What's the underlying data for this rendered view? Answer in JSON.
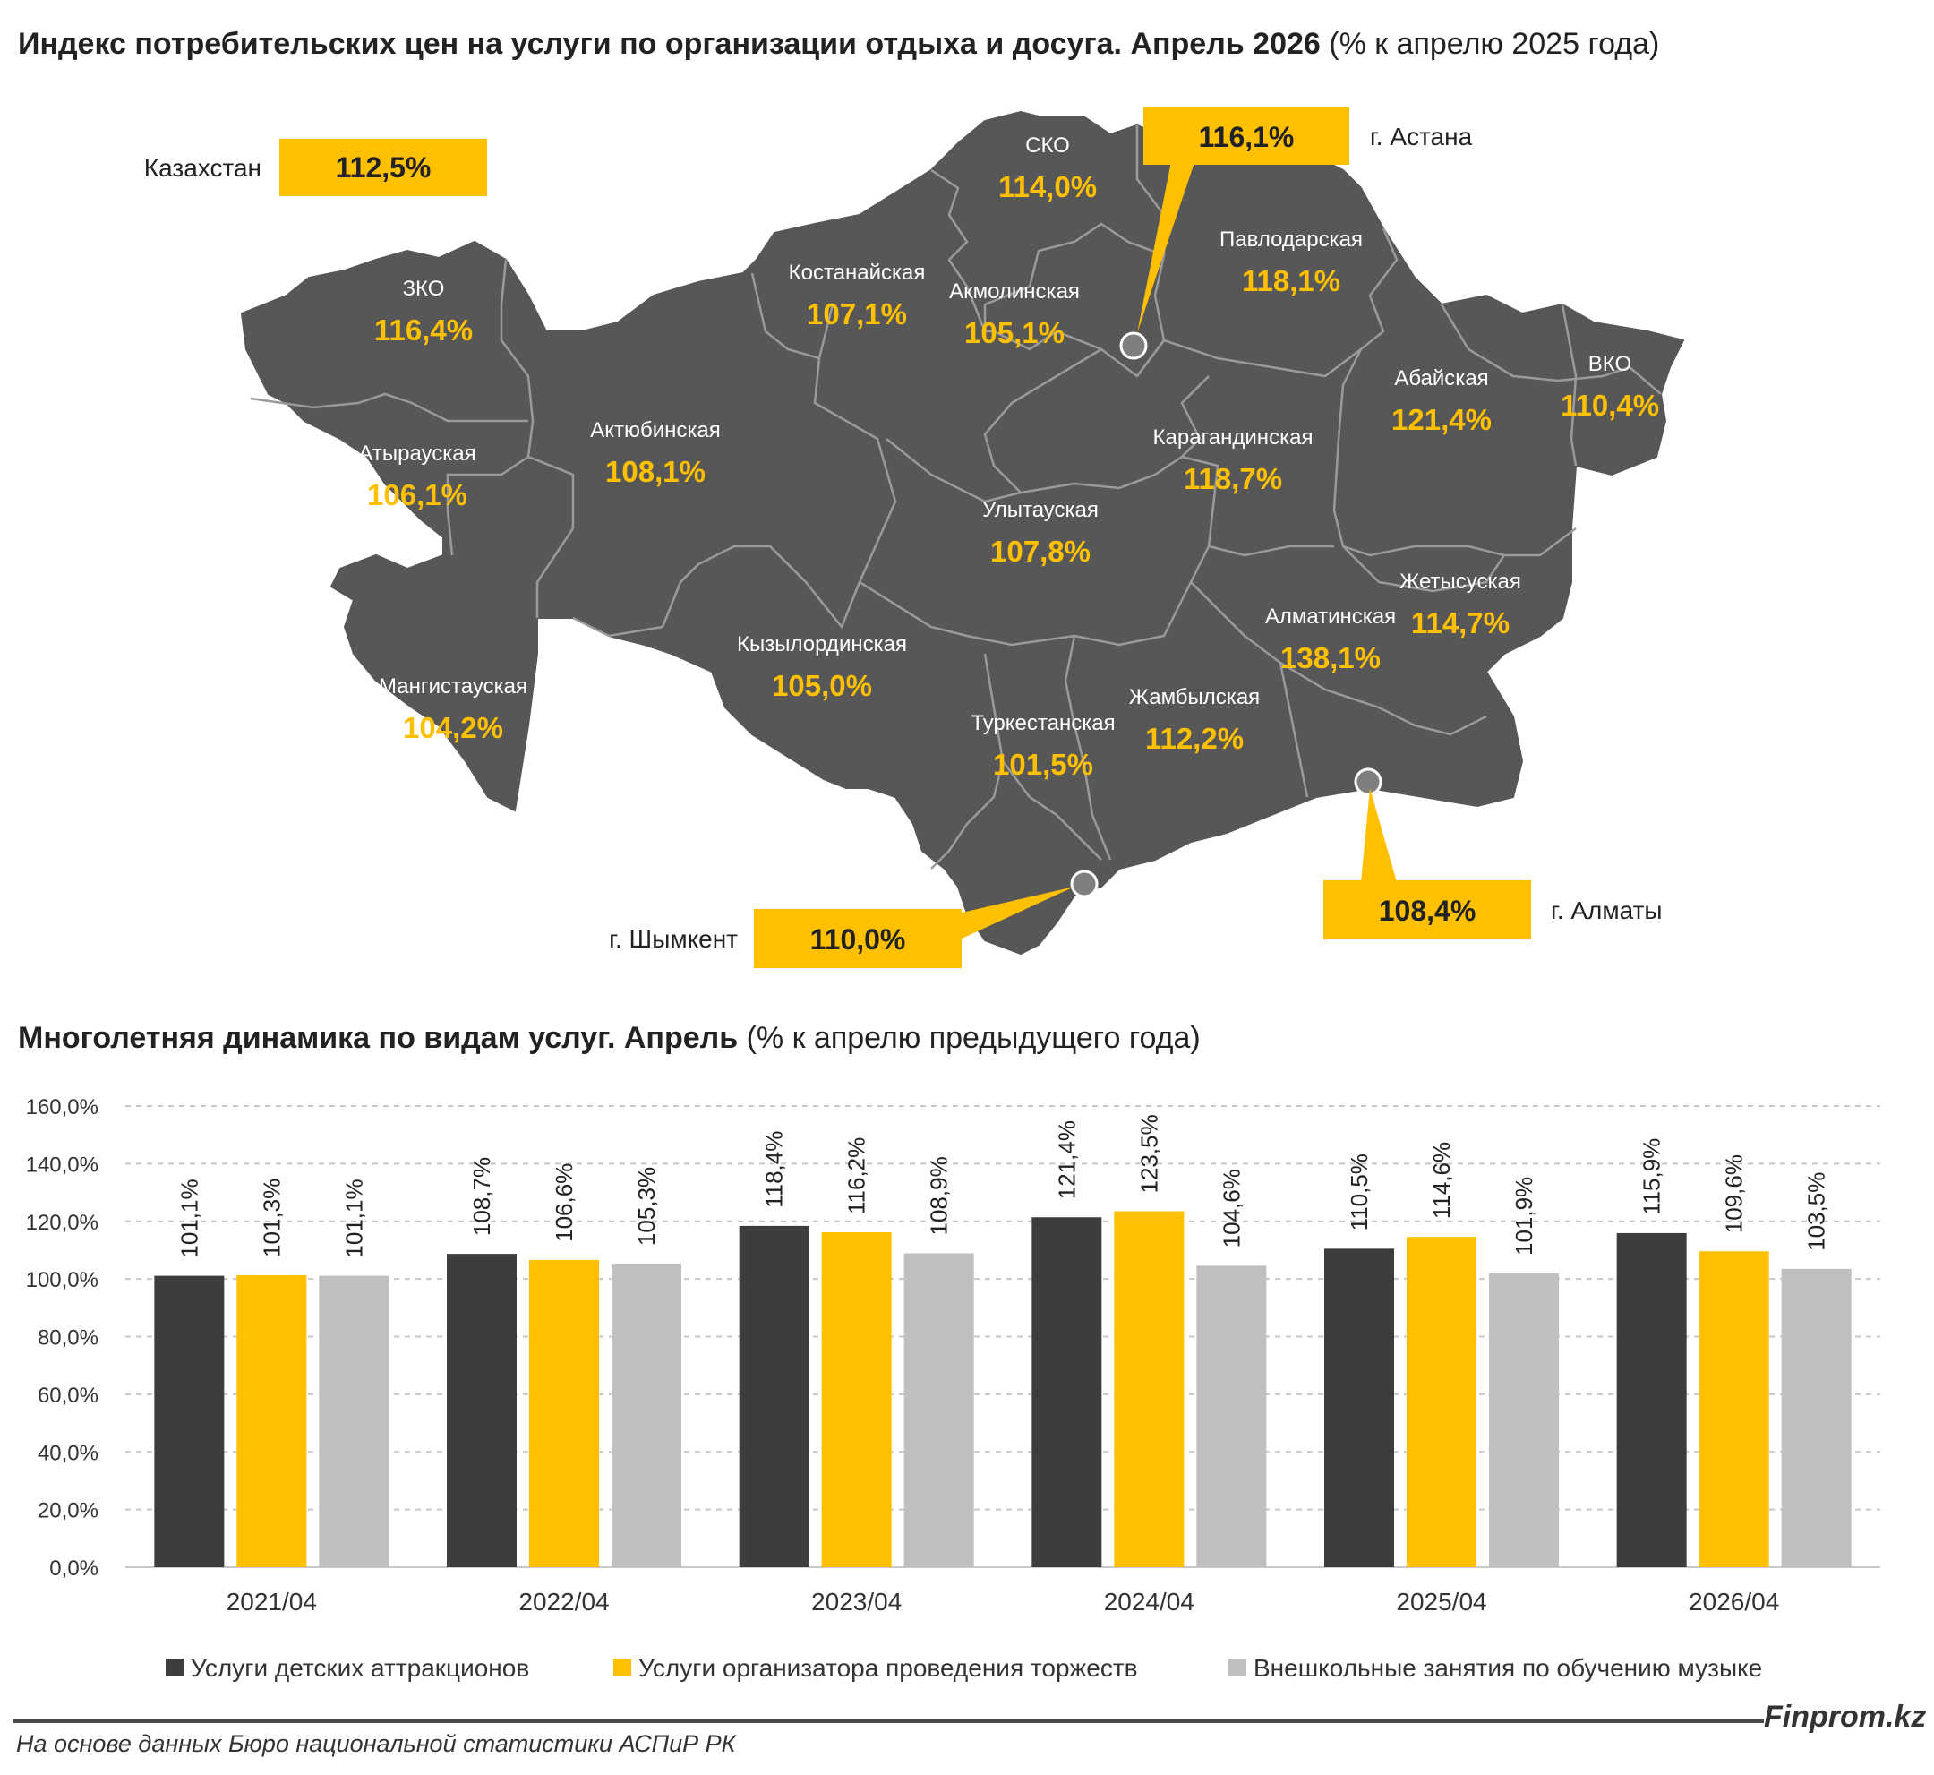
{
  "map": {
    "title_bold": "Индекс потребительских цен на услуги по организации отдыха и досуга. Апрель 2026",
    "title_rest": "(% к апрелю 2025 года)",
    "kazakhstan": {
      "label": "Казахстан",
      "value": "112,5%"
    },
    "cities": {
      "astana": {
        "label": "г. Астана",
        "value": "116,1%"
      },
      "almaty": {
        "label": "г. Алматы",
        "value": "108,4%"
      },
      "shymkent": {
        "label": "г. Шымкент",
        "value": "110,0%"
      }
    },
    "regions": [
      {
        "id": "sko",
        "name": "СКО",
        "value": "114,0%"
      },
      {
        "id": "pavlodar",
        "name": "Павлодарская",
        "value": "118,1%"
      },
      {
        "id": "kostanay",
        "name": "Костанайская",
        "value": "107,1%"
      },
      {
        "id": "akmola",
        "name": "Акмолинская",
        "value": "105,1%"
      },
      {
        "id": "zko",
        "name": "ЗКО",
        "value": "116,4%"
      },
      {
        "id": "abay",
        "name": "Абайская",
        "value": "121,4%"
      },
      {
        "id": "vko",
        "name": "ВКО",
        "value": "110,4%"
      },
      {
        "id": "aktobe",
        "name": "Актюбинская",
        "value": "108,1%"
      },
      {
        "id": "atyrau",
        "name": "Атырауская",
        "value": "106,1%"
      },
      {
        "id": "karaganda",
        "name": "Карагандинская",
        "value": "118,7%"
      },
      {
        "id": "ulytau",
        "name": "Улытауская",
        "value": "107,8%"
      },
      {
        "id": "zhetysu",
        "name": "Жетысуская",
        "value": "114,7%"
      },
      {
        "id": "almaty_reg",
        "name": "Алматинская",
        "value": "138,1%"
      },
      {
        "id": "kyzylorda",
        "name": "Кызылординская",
        "value": "105,0%"
      },
      {
        "id": "mangystau",
        "name": "Мангистауская",
        "value": "104,2%"
      },
      {
        "id": "zhambyl",
        "name": "Жамбылская",
        "value": "112,2%"
      },
      {
        "id": "turkestan",
        "name": "Туркестанская",
        "value": "101,5%"
      }
    ]
  },
  "chart_title_bold": "Многолетняя динамика по видам услуг. Апрель",
  "chart_title_rest": "(% к апрелю предыдущего года)",
  "chart_data": {
    "type": "bar",
    "categories": [
      "2021/04",
      "2022/04",
      "2023/04",
      "2024/04",
      "2025/04",
      "2026/04"
    ],
    "series": [
      {
        "name": "Услуги детских аттракционов",
        "color": "#3d3d3d",
        "values": [
          101.1,
          108.7,
          118.4,
          121.4,
          110.5,
          115.9
        ],
        "labels": [
          "101,1%",
          "108,7%",
          "118,4%",
          "121,4%",
          "110,5%",
          "115,9%"
        ]
      },
      {
        "name": "Услуги организатора проведения торжеств",
        "color": "#ffc000",
        "values": [
          101.3,
          106.6,
          116.2,
          123.5,
          114.6,
          109.6
        ],
        "labels": [
          "101,3%",
          "106,6%",
          "116,2%",
          "123,5%",
          "114,6%",
          "109,6%"
        ]
      },
      {
        "name": "Внешкольные занятия по обучению музыке",
        "color": "#bfbfbf",
        "values": [
          101.1,
          105.3,
          108.9,
          104.6,
          101.9,
          103.5
        ],
        "labels": [
          "101,1%",
          "105,3%",
          "108,9%",
          "104,6%",
          "101,9%",
          "103,5%"
        ]
      }
    ],
    "ylim": [
      0,
      160
    ],
    "yticks": [
      "0,0%",
      "20,0%",
      "40,0%",
      "60,0%",
      "80,0%",
      "100,0%",
      "120,0%",
      "140,0%",
      "160,0%"
    ],
    "grid": true,
    "legend": "bottom"
  },
  "source": "На основе данных Бюро национальной статистики АСПиР РК",
  "brand": "Finprom.kz"
}
